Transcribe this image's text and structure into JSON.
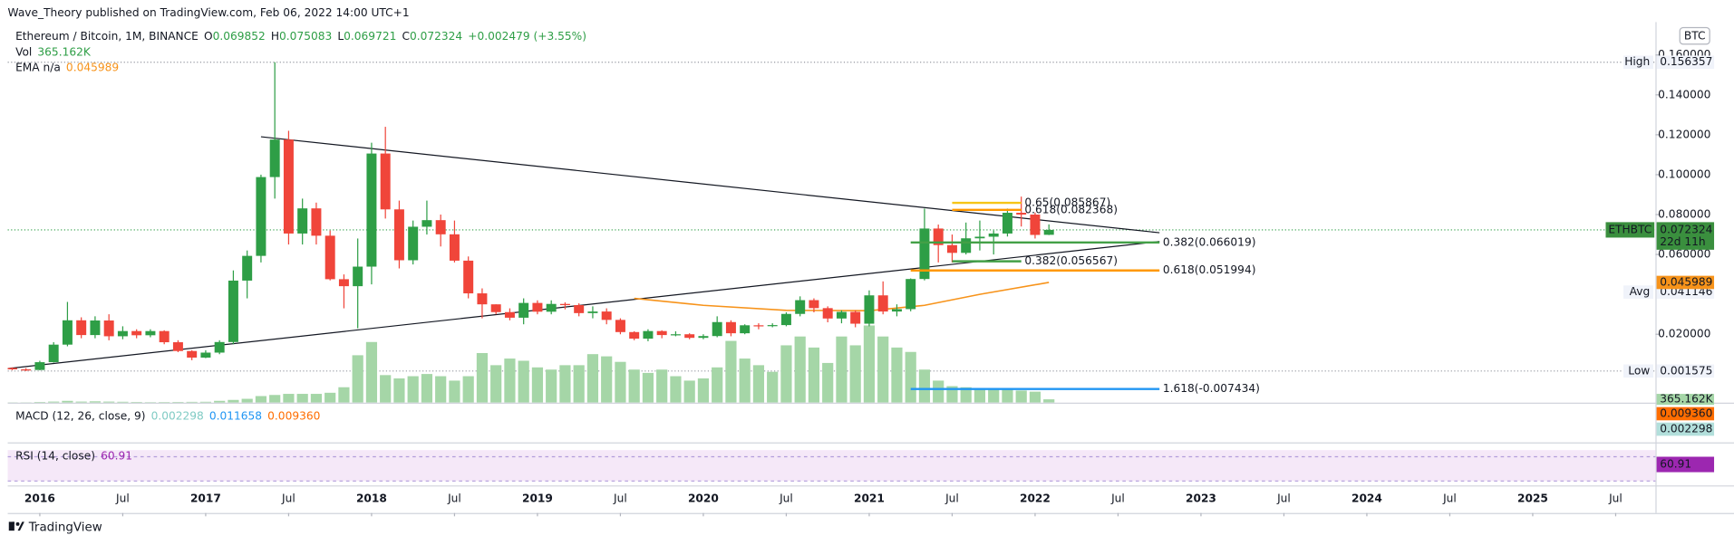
{
  "header": {
    "published": "Wave_Theory published on TradingView.com, Feb 06, 2022 14:00 UTC+1",
    "brand": "TradingView"
  },
  "chart_data": {
    "type": "candlestick",
    "title": "Ethereum / Bitcoin, 1M, BINANCE",
    "currency": "BTC",
    "symbol": "ETHBTC",
    "countdown": "22d 11h",
    "legend": {
      "o": "O",
      "h": "H",
      "l": "L",
      "c": "C",
      "change": "+0.002479 (+3.55%)",
      "vol_name": "Vol",
      "vol_value": "365.162K",
      "ema_name": "EMA n/a"
    },
    "x": [
      "2015-11",
      "2015-12",
      "2016-01",
      "2016-02",
      "2016-03",
      "2016-04",
      "2016-05",
      "2016-06",
      "2016-07",
      "2016-08",
      "2016-09",
      "2016-10",
      "2016-11",
      "2016-12",
      "2017-01",
      "2017-02",
      "2017-03",
      "2017-04",
      "2017-05",
      "2017-06",
      "2017-07",
      "2017-08",
      "2017-09",
      "2017-10",
      "2017-11",
      "2017-12",
      "2018-01",
      "2018-02",
      "2018-03",
      "2018-04",
      "2018-05",
      "2018-06",
      "2018-07",
      "2018-08",
      "2018-09",
      "2018-10",
      "2018-11",
      "2018-12",
      "2019-01",
      "2019-02",
      "2019-03",
      "2019-04",
      "2019-05",
      "2019-06",
      "2019-07",
      "2019-08",
      "2019-09",
      "2019-10",
      "2019-11",
      "2019-12",
      "2020-01",
      "2020-02",
      "2020-03",
      "2020-04",
      "2020-05",
      "2020-06",
      "2020-07",
      "2020-08",
      "2020-09",
      "2020-10",
      "2020-11",
      "2020-12",
      "2021-01",
      "2021-02",
      "2021-03",
      "2021-04",
      "2021-05",
      "2021-06",
      "2021-07",
      "2021-08",
      "2021-09",
      "2021-10",
      "2021-11",
      "2021-12",
      "2022-01",
      "2022-02"
    ],
    "ohlc": [
      [
        0.0031,
        0.0034,
        0.002,
        0.0024
      ],
      [
        0.0024,
        0.003,
        0.001575,
        0.0021
      ],
      [
        0.0021,
        0.0067,
        0.002,
        0.006
      ],
      [
        0.006,
        0.016,
        0.0058,
        0.0148
      ],
      [
        0.0148,
        0.0362,
        0.014,
        0.027
      ],
      [
        0.027,
        0.0285,
        0.018,
        0.0196
      ],
      [
        0.0196,
        0.029,
        0.018,
        0.0269
      ],
      [
        0.0269,
        0.03,
        0.017,
        0.019
      ],
      [
        0.019,
        0.024,
        0.0175,
        0.0216
      ],
      [
        0.0216,
        0.0225,
        0.018,
        0.0195
      ],
      [
        0.0195,
        0.0225,
        0.0185,
        0.0216
      ],
      [
        0.0216,
        0.022,
        0.015,
        0.016
      ],
      [
        0.016,
        0.017,
        0.011,
        0.0116
      ],
      [
        0.0116,
        0.012,
        0.007,
        0.0083
      ],
      [
        0.0083,
        0.012,
        0.008,
        0.0108
      ],
      [
        0.0108,
        0.017,
        0.01,
        0.0161
      ],
      [
        0.0161,
        0.052,
        0.015,
        0.0469
      ],
      [
        0.0469,
        0.062,
        0.038,
        0.0593
      ],
      [
        0.0593,
        0.1,
        0.056,
        0.0988
      ],
      [
        0.0988,
        0.156357,
        0.088,
        0.1176
      ],
      [
        0.1176,
        0.122,
        0.065,
        0.0705
      ],
      [
        0.0705,
        0.088,
        0.065,
        0.0831
      ],
      [
        0.0831,
        0.086,
        0.065,
        0.0694
      ],
      [
        0.0694,
        0.072,
        0.047,
        0.0476
      ],
      [
        0.0476,
        0.05,
        0.033,
        0.0441
      ],
      [
        0.0441,
        0.068,
        0.023,
        0.0539
      ],
      [
        0.0539,
        0.116,
        0.045,
        0.1106
      ],
      [
        0.1106,
        0.124,
        0.078,
        0.0826
      ],
      [
        0.0826,
        0.087,
        0.053,
        0.0571
      ],
      [
        0.0571,
        0.077,
        0.055,
        0.0739
      ],
      [
        0.0739,
        0.087,
        0.07,
        0.0772
      ],
      [
        0.0772,
        0.08,
        0.064,
        0.0701
      ],
      [
        0.0701,
        0.077,
        0.056,
        0.0569
      ],
      [
        0.0569,
        0.059,
        0.038,
        0.0405
      ],
      [
        0.0405,
        0.043,
        0.028,
        0.035
      ],
      [
        0.035,
        0.035,
        0.03,
        0.0311
      ],
      [
        0.0311,
        0.033,
        0.027,
        0.0283
      ],
      [
        0.0283,
        0.038,
        0.025,
        0.0357
      ],
      [
        0.0357,
        0.037,
        0.03,
        0.0313
      ],
      [
        0.0313,
        0.037,
        0.03,
        0.0352
      ],
      [
        0.0352,
        0.036,
        0.0325,
        0.0346
      ],
      [
        0.0346,
        0.0355,
        0.029,
        0.0306
      ],
      [
        0.0306,
        0.034,
        0.028,
        0.0314
      ],
      [
        0.0314,
        0.033,
        0.025,
        0.0272
      ],
      [
        0.0272,
        0.028,
        0.02,
        0.0211
      ],
      [
        0.0211,
        0.0215,
        0.017,
        0.0178
      ],
      [
        0.0178,
        0.0225,
        0.0165,
        0.0216
      ],
      [
        0.0216,
        0.022,
        0.018,
        0.0196
      ],
      [
        0.0196,
        0.0215,
        0.019,
        0.02
      ],
      [
        0.02,
        0.0205,
        0.0175,
        0.0182
      ],
      [
        0.0182,
        0.02,
        0.0175,
        0.0191
      ],
      [
        0.0191,
        0.029,
        0.0185,
        0.0261
      ],
      [
        0.0261,
        0.027,
        0.019,
        0.0205
      ],
      [
        0.0205,
        0.025,
        0.02,
        0.0245
      ],
      [
        0.0245,
        0.0255,
        0.0225,
        0.0242
      ],
      [
        0.0242,
        0.0255,
        0.0235,
        0.0246
      ],
      [
        0.0246,
        0.031,
        0.024,
        0.0302
      ],
      [
        0.0302,
        0.039,
        0.029,
        0.0371
      ],
      [
        0.0371,
        0.038,
        0.031,
        0.0331
      ],
      [
        0.0331,
        0.034,
        0.026,
        0.0279
      ],
      [
        0.0279,
        0.032,
        0.0255,
        0.0312
      ],
      [
        0.0312,
        0.032,
        0.0235,
        0.0253
      ],
      [
        0.0253,
        0.042,
        0.024,
        0.0395
      ],
      [
        0.0395,
        0.0465,
        0.03,
        0.0314
      ],
      [
        0.0314,
        0.035,
        0.029,
        0.0326
      ],
      [
        0.0326,
        0.048,
        0.0315,
        0.0477
      ],
      [
        0.0477,
        0.083,
        0.047,
        0.073
      ],
      [
        0.073,
        0.075,
        0.056,
        0.0647
      ],
      [
        0.0647,
        0.07,
        0.056,
        0.0608
      ],
      [
        0.0608,
        0.076,
        0.06,
        0.0681
      ],
      [
        0.0681,
        0.077,
        0.062,
        0.0689
      ],
      [
        0.0689,
        0.072,
        0.06,
        0.0705
      ],
      [
        0.0705,
        0.083,
        0.069,
        0.0809
      ],
      [
        0.0809,
        0.089,
        0.074,
        0.08
      ],
      [
        0.08,
        0.081,
        0.068,
        0.0698
      ],
      [
        0.069852,
        0.075083,
        0.069721,
        0.072324
      ]
    ],
    "up_color": "#2e9e46",
    "down_color": "#f0453a",
    "volume": {
      "color": "#a5d6a7",
      "ylim": [
        0,
        41400
      ],
      "values": [
        40,
        40,
        80,
        120,
        200,
        120,
        150,
        120,
        100,
        80,
        60,
        70,
        80,
        90,
        100,
        200,
        300,
        420,
        720,
        840,
        960,
        960,
        960,
        1080,
        1680,
        5160,
        6600,
        3000,
        2640,
        2880,
        3120,
        2880,
        2400,
        2880,
        5400,
        4080,
        4800,
        4560,
        3840,
        3600,
        4080,
        4080,
        5280,
        5040,
        4440,
        3600,
        3240,
        3600,
        2880,
        2400,
        2640,
        3840,
        6720,
        4800,
        4080,
        3360,
        6240,
        7200,
        6000,
        4320,
        7200,
        6240,
        8400,
        7200,
        6000,
        5520,
        3600,
        2400,
        1800,
        1680,
        1560,
        1440,
        1440,
        1320,
        1200,
        365.162
      ]
    },
    "ema": {
      "color": "#f7931a",
      "x": [
        "2019-08",
        "2020-01",
        "2020-07",
        "2021-01",
        "2021-05",
        "2021-09",
        "2022-02"
      ],
      "values": [
        0.038,
        0.0345,
        0.032,
        0.0318,
        0.0345,
        0.04,
        0.045989
      ]
    },
    "ylim": [
      -0.0143,
      0.1765
    ],
    "yticks": [
      {
        "value": 0.02,
        "label": "0.020000"
      },
      {
        "value": 0.06,
        "label": "0.060000"
      },
      {
        "value": 0.08,
        "label": "0.080000"
      },
      {
        "value": 0.1,
        "label": "0.100000"
      },
      {
        "value": 0.12,
        "label": "0.120000"
      },
      {
        "value": 0.14,
        "label": "0.140000"
      },
      {
        "value": 0.16,
        "label": "0.160000"
      }
    ],
    "xlim": [
      "2015-10",
      "2025-10"
    ],
    "xticks": [
      {
        "value": "2016-01",
        "label": "2016"
      },
      {
        "value": "2016-07",
        "label": "Jul"
      },
      {
        "value": "2017-01",
        "label": "2017"
      },
      {
        "value": "2017-07",
        "label": "Jul"
      },
      {
        "value": "2018-01",
        "label": "2018"
      },
      {
        "value": "2018-07",
        "label": "Jul"
      },
      {
        "value": "2019-01",
        "label": "2019"
      },
      {
        "value": "2019-07",
        "label": "Jul"
      },
      {
        "value": "2020-01",
        "label": "2020"
      },
      {
        "value": "2020-07",
        "label": "Jul"
      },
      {
        "value": "2021-01",
        "label": "2021"
      },
      {
        "value": "2021-07",
        "label": "Jul"
      },
      {
        "value": "2022-01",
        "label": "2022"
      },
      {
        "value": "2022-07",
        "label": "Jul"
      },
      {
        "value": "2023-01",
        "label": "2023"
      },
      {
        "value": "2023-07",
        "label": "Jul"
      },
      {
        "value": "2024-01",
        "label": "2024"
      },
      {
        "value": "2024-07",
        "label": "Jul"
      },
      {
        "value": "2025-01",
        "label": "2025"
      },
      {
        "value": "2025-07",
        "label": "Jul"
      }
    ],
    "high": {
      "label": "High",
      "value": 0.156357
    },
    "low": {
      "label": "Low",
      "value": 0.001575
    },
    "avg": {
      "label": "Avg",
      "value": 0.041146
    },
    "trendlines": [
      {
        "x": [
          "2017-05",
          "2022-10"
        ],
        "values": [
          0.119,
          0.0709
        ]
      },
      {
        "x": [
          "2015-10",
          "2022-10"
        ],
        "values": [
          0.0023,
          0.0665
        ]
      }
    ],
    "fib_levels": [
      {
        "label": "0.65(0.085867)",
        "value": 0.085867,
        "color": "#f5c518",
        "x": [
          "2021-07",
          "2021-12"
        ]
      },
      {
        "label": "0.618(0.082368)",
        "value": 0.082368,
        "color": "#ff9800",
        "x": [
          "2021-07",
          "2021-12"
        ]
      },
      {
        "label": "0.382(0.066019)",
        "value": 0.066019,
        "color": "#43a047",
        "x": [
          "2021-04",
          "2022-10"
        ]
      },
      {
        "label": "0.382(0.056567)",
        "value": 0.056567,
        "color": "#43a047",
        "x": [
          "2021-07",
          "2021-12"
        ]
      },
      {
        "label": "0.618(0.051994)",
        "value": 0.051994,
        "color": "#ff9800",
        "x": [
          "2021-04",
          "2022-10"
        ]
      },
      {
        "label": "1.618(-0.007434)",
        "value": -0.007434,
        "color": "#2196f3",
        "x": [
          "2021-04",
          "2022-10"
        ]
      }
    ],
    "macd": {
      "title": "MACD (12, 26, close, 9)",
      "values": [
        0.002298,
        0.011658,
        0.00936
      ],
      "value_labels": [
        "0.002298",
        "0.011658",
        "0.009360"
      ],
      "colors": [
        "#80cbc4",
        "#2196f3",
        "#ff6d00"
      ]
    },
    "rsi": {
      "title": "RSI (14, close)",
      "value": 60.91,
      "color": "#9c27b0"
    }
  }
}
